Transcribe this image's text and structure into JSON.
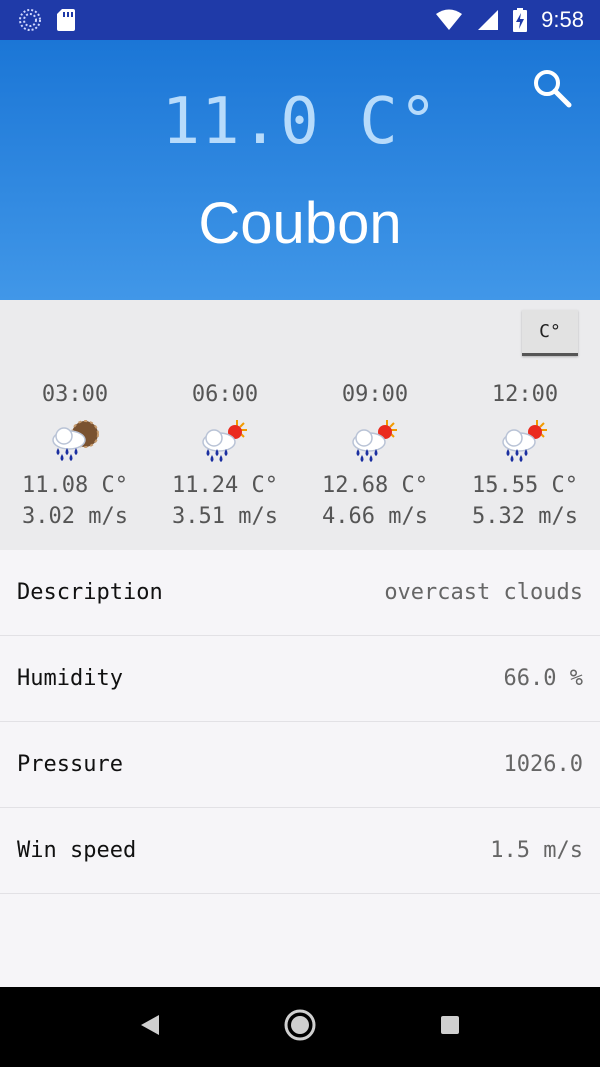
{
  "status_bar": {
    "time": "9:58",
    "icons": [
      "spinner-icon",
      "sd-card-icon",
      "wifi-icon",
      "signal-icon",
      "battery-charging-icon"
    ]
  },
  "header": {
    "temperature": "11.0 C°",
    "city": "Coubon",
    "search_icon": "search-icon"
  },
  "unit_toggle": {
    "label": "C°"
  },
  "forecast": [
    {
      "time": "03:00",
      "icon": "rain-night-icon",
      "temp": "11.08 C°",
      "wind": "3.02 m/s"
    },
    {
      "time": "06:00",
      "icon": "rain-sun-icon",
      "temp": "11.24 C°",
      "wind": "3.51 m/s"
    },
    {
      "time": "09:00",
      "icon": "rain-sun-icon",
      "temp": "12.68 C°",
      "wind": "4.66 m/s"
    },
    {
      "time": "12:00",
      "icon": "rain-sun-icon",
      "temp": "15.55 C°",
      "wind": "5.32 m/s"
    }
  ],
  "details": [
    {
      "label": "Description",
      "value": "overcast clouds"
    },
    {
      "label": "Humidity",
      "value": "66.0 %"
    },
    {
      "label": "Pressure",
      "value": "1026.0"
    },
    {
      "label": "Win speed",
      "value": "1.5 m/s"
    }
  ],
  "colors": {
    "status_bar": "#1f3aa8",
    "header_top": "#1b76d6",
    "header_bottom": "#4197e8",
    "temp_text": "#b7dbfb"
  },
  "nav_bar": {
    "icons": [
      "back-icon",
      "home-icon",
      "recents-icon"
    ]
  }
}
